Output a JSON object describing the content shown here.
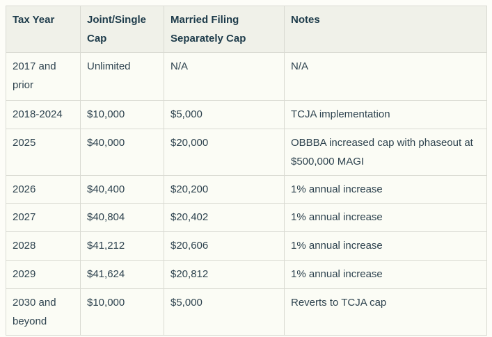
{
  "colors": {
    "page_bg": "#fdfdf8",
    "header_bg": "#f0f1e9",
    "row_bg": "#fbfcf5",
    "border": "#d9dad2",
    "header_text": "#1d3b4a",
    "body_text": "#2d424e"
  },
  "table": {
    "columns": [
      {
        "label": "Tax Year"
      },
      {
        "label": "Joint/Single Cap"
      },
      {
        "label": "Married Filing Separately Cap"
      },
      {
        "label": "Notes"
      }
    ],
    "rows": [
      {
        "cells": [
          "2017 and prior",
          "Unlimited",
          "N/A",
          "N/A"
        ]
      },
      {
        "cells": [
          "2018-2024",
          "$10,000",
          "$5,000",
          "TCJA implementation"
        ]
      },
      {
        "cells": [
          "2025",
          "$40,000",
          "$20,000",
          "OBBBA increased cap with phaseout at $500,000 MAGI"
        ]
      },
      {
        "cells": [
          "2026",
          "$40,400",
          "$20,200",
          "1% annual increase"
        ]
      },
      {
        "cells": [
          "2027",
          "$40,804",
          "$20,402",
          "1% annual increase"
        ]
      },
      {
        "cells": [
          "2028",
          "$41,212",
          "$20,606",
          "1% annual increase"
        ]
      },
      {
        "cells": [
          "2029",
          "$41,624",
          "$20,812",
          "1% annual increase"
        ]
      },
      {
        "cells": [
          "2030 and beyond",
          "$10,000",
          "$5,000",
          "Reverts to TCJA cap"
        ]
      }
    ]
  }
}
